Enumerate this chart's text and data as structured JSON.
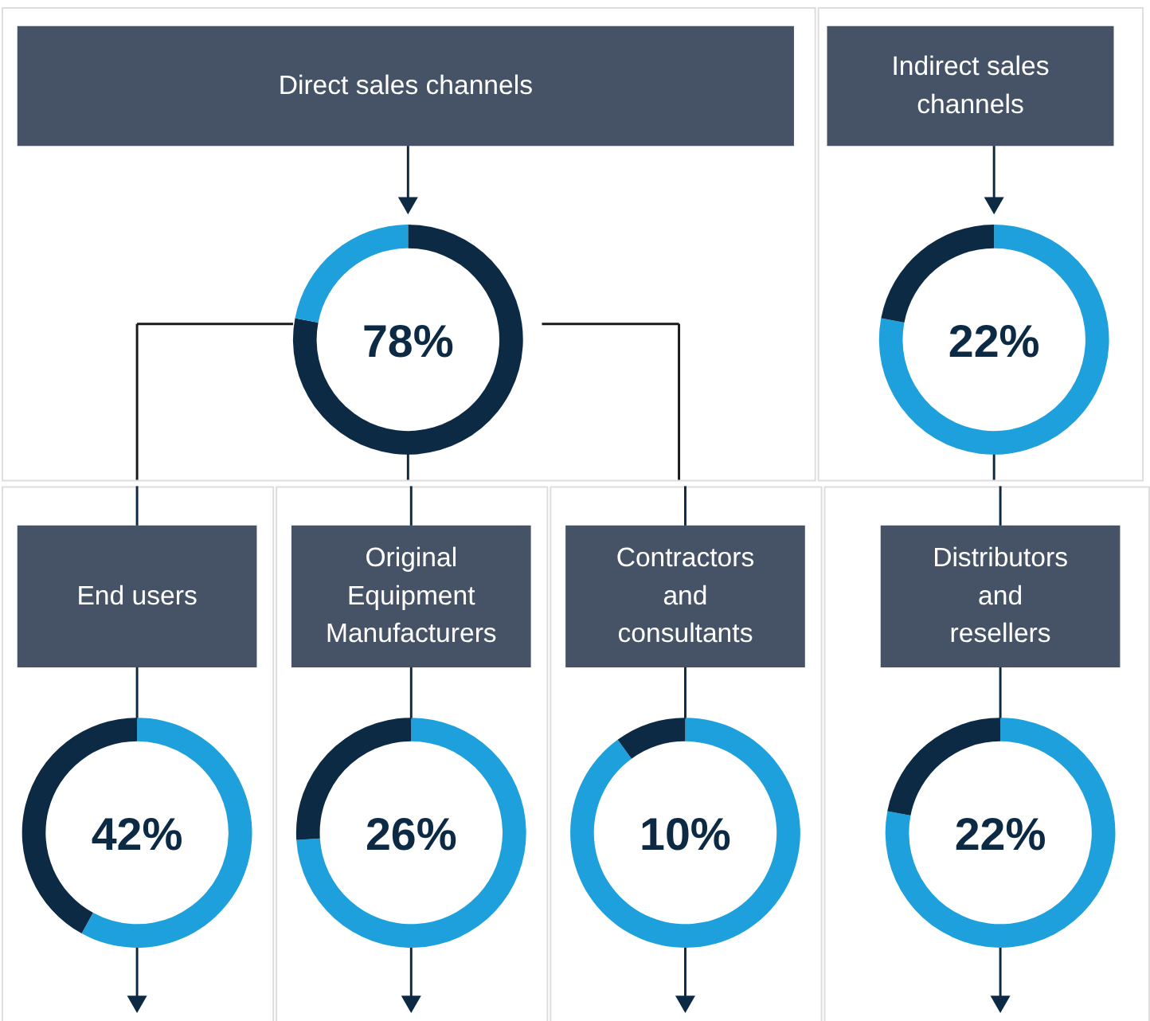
{
  "chart_data": [
    {
      "type": "donut",
      "title": "Direct sales channels",
      "categories": [
        null,
        null
      ],
      "values": [
        78,
        22
      ],
      "colors": [
        "#0d2a45",
        "#1ea0dc"
      ],
      "annotations": [
        "78%"
      ]
    },
    {
      "type": "donut",
      "title": "Indirect sales\nchannels",
      "categories": [
        null,
        null
      ],
      "values": [
        78,
        22
      ],
      "colors": [
        "#1ea0dc",
        "#0d2a45"
      ],
      "annotations": [
        "22%"
      ]
    },
    {
      "type": "donut",
      "title": "End users",
      "categories": [
        null,
        null
      ],
      "values": [
        58,
        42
      ],
      "colors": [
        "#1ea0dc",
        "#0d2a45"
      ],
      "annotations": [
        "42%"
      ]
    },
    {
      "type": "donut",
      "title": "Original\nEquipment\nManufacturers",
      "categories": [
        null,
        null
      ],
      "values": [
        74,
        26
      ],
      "colors": [
        "#1ea0dc",
        "#0d2a45"
      ],
      "annotations": [
        "26%"
      ]
    },
    {
      "type": "donut",
      "title": "Contractors\nand\nconsultants",
      "categories": [
        null,
        null
      ],
      "values": [
        90,
        10
      ],
      "colors": [
        "#1ea0dc",
        "#0d2a45"
      ],
      "annotations": [
        "10%"
      ]
    },
    {
      "type": "donut",
      "title": "Distributors\nand\nresellers",
      "categories": [
        null,
        null
      ],
      "values": [
        78,
        22
      ],
      "colors": [
        "#1ea0dc",
        "#0d2a45"
      ],
      "annotations": [
        "22%"
      ]
    }
  ]
}
